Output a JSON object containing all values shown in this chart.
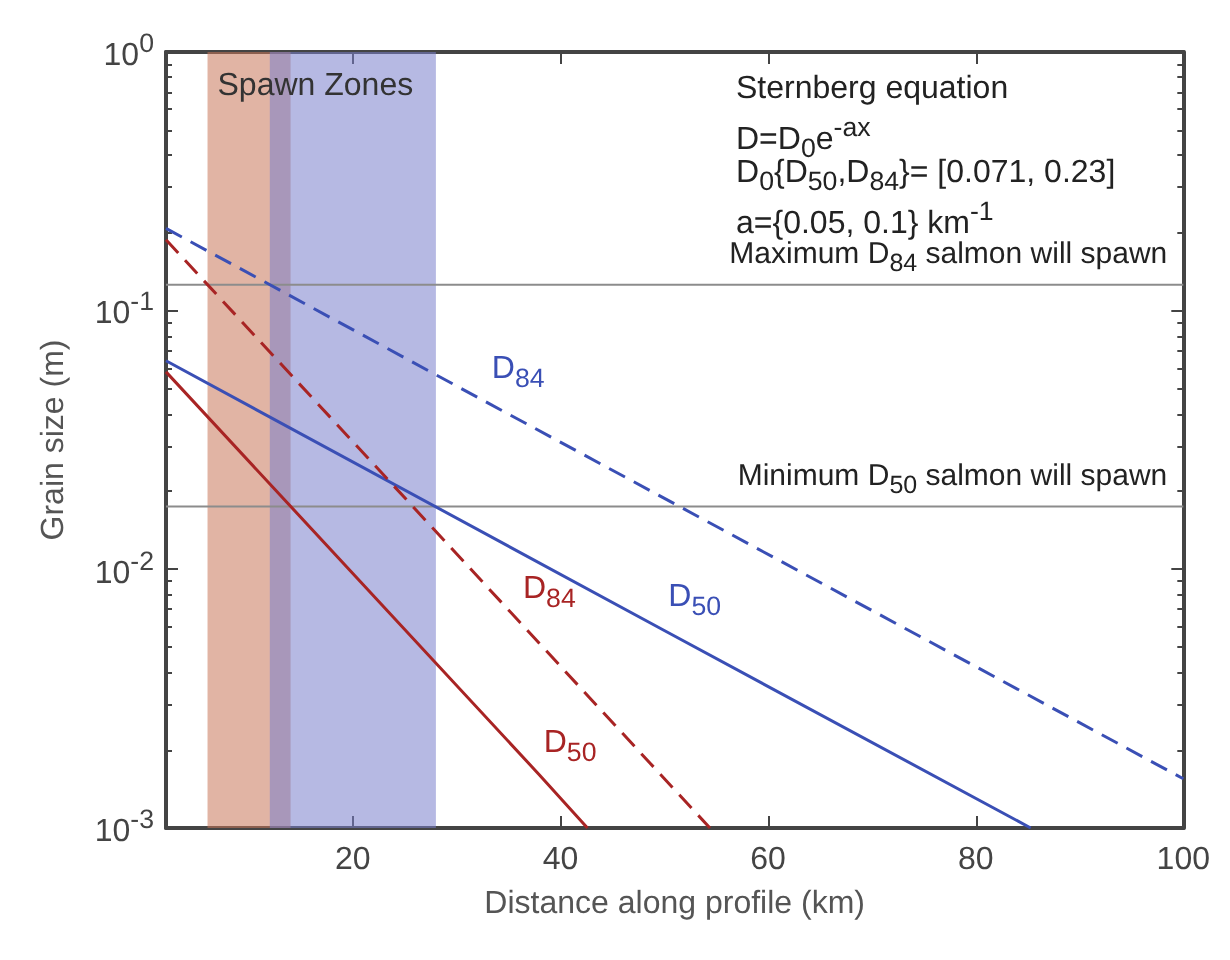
{
  "chart_data": {
    "type": "line",
    "xlabel": "Distance along profile (km)",
    "ylabel": "Grain size (m)",
    "log": "y",
    "xlim": [
      2,
      100
    ],
    "xticks": [
      20,
      40,
      60,
      80,
      100
    ],
    "ylim": [
      0.001,
      1
    ],
    "yticks": [
      {
        "value": 0.001,
        "label": "10$^{-3}$"
      },
      {
        "value": 0.01,
        "label": "10$^{-2}$"
      },
      {
        "value": 0.1,
        "label": "10$^{-1}$"
      },
      {
        "value": 1,
        "label": "10$^{0}$"
      }
    ],
    "grid": false,
    "legend": false,
    "marker": "none",
    "series": [
      {
        "name": "D$_{84}$",
        "color": "#3a4fb5",
        "line_style": "dashed",
        "x": [
          2,
          33,
          100
        ],
        "values": [
          0.208,
          0.044,
          0.00155
        ]
      },
      {
        "name": "D$_{50}$",
        "color": "#3a4fb5",
        "line_style": "solid",
        "x": [
          2,
          50,
          85.3
        ],
        "values": [
          0.064,
          0.0058,
          0.001
        ]
      },
      {
        "name": "D$_{84}$",
        "color": "#a82424",
        "line_style": "dashed",
        "x": [
          2,
          36,
          54.4
        ],
        "values": [
          0.188,
          0.0063,
          0.001
        ]
      },
      {
        "name": "D$_{50}$",
        "color": "#a82424",
        "line_style": "solid",
        "x": [
          2,
          38,
          42.6
        ],
        "values": [
          0.058,
          0.0016,
          0.001
        ]
      }
    ],
    "ref_lines": [
      {
        "axis": "y",
        "value": 0.126,
        "label": "Maximum D$_{84}$ salmon will spawn",
        "color": "#8c8c8c"
      },
      {
        "axis": "y",
        "value": 0.0175,
        "label": "Minimum D$_{50}$ salmon will spawn",
        "color": "#8c8c8c"
      }
    ],
    "bands": [
      {
        "axis": "x",
        "from": 6,
        "to": 14,
        "label": "Spawn Zones",
        "color": "#c9765a"
      },
      {
        "axis": "x",
        "from": 12,
        "to": 28,
        "label": null,
        "color": "#7a80cc"
      }
    ],
    "annotations": [
      "Sternberg equation",
      "D=D$_{0}$e$^{-ax}$",
      "D$_{0}${D$_{50}$,D$_{84}$}= [0.071, 0.23]",
      "a={0.05, 0.1} km$^{-1}$"
    ]
  }
}
